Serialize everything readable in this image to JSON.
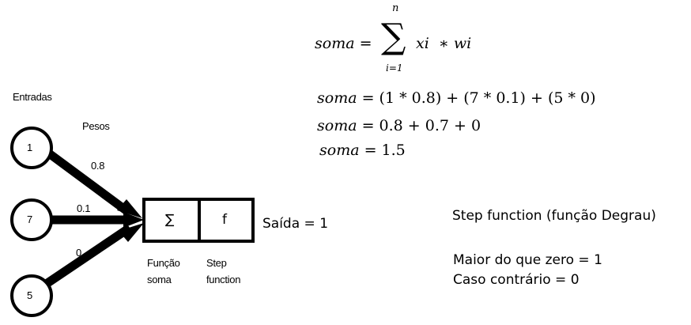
{
  "labels": {
    "entradas": "Entradas",
    "pesos": "Pesos",
    "funcao_soma_line1": "Função",
    "funcao_soma_line2": "soma",
    "step_line1": "Step",
    "step_line2": "function",
    "saida": "Saída = 1"
  },
  "inputs": [
    {
      "value": "1",
      "weight": "0.8"
    },
    {
      "value": "7",
      "weight": "0.1"
    },
    {
      "value": "5",
      "weight": "0"
    }
  ],
  "neuron": {
    "sum_symbol": "∑",
    "activation_symbol": "f"
  },
  "formula": {
    "sum_lhs": "soma",
    "equals": "=",
    "sigma": "∑",
    "upper": "n",
    "lower": "i=1",
    "term": "xi  ∗ wi",
    "line2_lhs": "soma",
    "line2_rhs": "= (1 * 0.8) + (7 * 0.1) + (5 * 0)",
    "line3_lhs": "soma",
    "line3_rhs": "= 0.8 + 0.7 + 0",
    "line4_lhs": "soma",
    "line4_rhs": "= 1.5"
  },
  "step_function": {
    "title": "Step function (função Degrau)",
    "rule1": "Maior do que zero = 1",
    "rule2": "Caso contrário = 0"
  }
}
